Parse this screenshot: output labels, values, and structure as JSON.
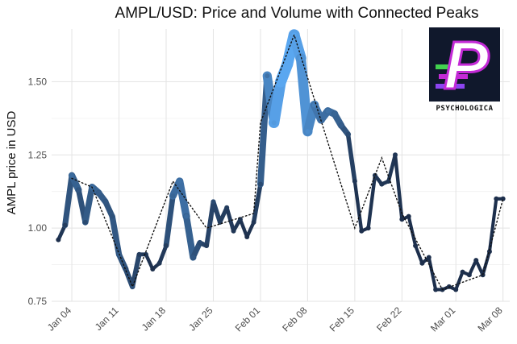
{
  "chart_data": {
    "type": "line",
    "title": "AMPL/USD: Price and Volume with Connected Peaks",
    "ylabel": "AMPL price in USD",
    "xlabel": "",
    "ylim": [
      0.75,
      1.68
    ],
    "yticks": [
      0.75,
      1.0,
      1.25,
      1.5
    ],
    "ytick_labels": [
      "0.75",
      "1.00",
      "1.25",
      "1.50"
    ],
    "x_start": "2020-01-01",
    "xlim": [
      "2020-01-01",
      "2020-03-09"
    ],
    "xticks": [
      "2020-01-04",
      "2020-01-11",
      "2020-01-18",
      "2020-01-25",
      "2020-02-01",
      "2020-02-08",
      "2020-02-15",
      "2020-02-22",
      "2020-03-01",
      "2020-03-08"
    ],
    "xtick_labels": [
      "Jan 04",
      "Jan 11",
      "Jan 18",
      "Jan 25",
      "Feb 01",
      "Feb 08",
      "Feb 15",
      "Feb 22",
      "Mar 01",
      "Mar 08"
    ],
    "grid": true,
    "series": [
      {
        "kind": "price-volume-line",
        "color_low_volume": "#16223a",
        "color_high_volume": "#5aa7f0",
        "x": [
          "2020-01-02",
          "2020-01-03",
          "2020-01-04",
          "2020-01-05",
          "2020-01-06",
          "2020-01-07",
          "2020-01-08",
          "2020-01-09",
          "2020-01-10",
          "2020-01-11",
          "2020-01-12",
          "2020-01-13",
          "2020-01-14",
          "2020-01-15",
          "2020-01-16",
          "2020-01-17",
          "2020-01-18",
          "2020-01-19",
          "2020-01-20",
          "2020-01-21",
          "2020-01-22",
          "2020-01-23",
          "2020-01-24",
          "2020-01-25",
          "2020-01-26",
          "2020-01-27",
          "2020-01-28",
          "2020-01-29",
          "2020-01-30",
          "2020-01-31",
          "2020-02-01",
          "2020-02-02",
          "2020-02-03",
          "2020-02-04",
          "2020-02-05",
          "2020-02-06",
          "2020-02-07",
          "2020-02-08",
          "2020-02-09",
          "2020-02-10",
          "2020-02-11",
          "2020-02-12",
          "2020-02-13",
          "2020-02-14",
          "2020-02-15",
          "2020-02-16",
          "2020-02-17",
          "2020-02-18",
          "2020-02-19",
          "2020-02-20",
          "2020-02-21",
          "2020-02-22",
          "2020-02-23",
          "2020-02-24",
          "2020-02-25",
          "2020-02-26",
          "2020-02-27",
          "2020-02-28",
          "2020-02-29",
          "2020-03-01",
          "2020-03-02",
          "2020-03-03",
          "2020-03-04",
          "2020-03-05",
          "2020-03-06",
          "2020-03-07",
          "2020-03-08"
        ],
        "y": [
          0.96,
          1.01,
          1.18,
          1.13,
          1.02,
          1.14,
          1.12,
          1.09,
          1.04,
          0.91,
          0.86,
          0.8,
          0.91,
          0.91,
          0.86,
          0.88,
          0.94,
          1.11,
          1.16,
          1.04,
          0.9,
          0.95,
          0.94,
          1.09,
          1.02,
          1.07,
          0.99,
          1.03,
          0.97,
          1.02,
          1.15,
          1.52,
          1.36,
          1.5,
          1.56,
          1.66,
          1.58,
          1.33,
          1.42,
          1.37,
          1.4,
          1.39,
          1.35,
          1.32,
          1.16,
          0.99,
          1.0,
          1.18,
          1.15,
          1.16,
          1.25,
          1.03,
          1.04,
          0.94,
          0.88,
          0.9,
          0.79,
          0.79,
          0.8,
          0.79,
          0.85,
          0.84,
          0.89,
          0.84,
          0.92,
          1.1,
          1.1
        ],
        "volume": [
          0.1,
          0.2,
          0.55,
          0.4,
          0.3,
          0.55,
          0.45,
          0.4,
          0.35,
          0.45,
          0.3,
          0.35,
          0.2,
          0.15,
          0.1,
          0.15,
          0.2,
          0.5,
          0.6,
          0.55,
          0.4,
          0.3,
          0.2,
          0.3,
          0.2,
          0.2,
          0.15,
          0.15,
          0.1,
          0.15,
          0.3,
          0.6,
          0.9,
          1.0,
          1.0,
          1.0,
          0.9,
          0.8,
          0.7,
          0.55,
          0.6,
          0.5,
          0.45,
          0.3,
          0.15,
          0.1,
          0.1,
          0.15,
          0.15,
          0.15,
          0.15,
          0.1,
          0.1,
          0.1,
          0.1,
          0.1,
          0.1,
          0.1,
          0.1,
          0.1,
          0.1,
          0.1,
          0.1,
          0.1,
          0.1,
          0.1,
          0.1
        ]
      },
      {
        "kind": "connected-peaks",
        "style": "dotted",
        "color": "#111111",
        "x": [
          "2020-01-04",
          "2020-01-07",
          "2020-01-13",
          "2020-01-19",
          "2020-01-24",
          "2020-01-31",
          "2020-02-01",
          "2020-02-06",
          "2020-02-15",
          "2020-02-19",
          "2020-02-22",
          "2020-02-28",
          "2020-03-05",
          "2020-03-08"
        ],
        "y": [
          1.17,
          1.14,
          0.8,
          1.16,
          1.0,
          1.05,
          1.36,
          1.66,
          1.0,
          1.24,
          1.05,
          0.79,
          0.84,
          1.1
        ]
      }
    ]
  },
  "logo": {
    "text": "PSYCHOLOGICA",
    "letter": "P",
    "colors": {
      "background": "#10182c",
      "letter": "#ffffff",
      "magenta": "#c32ad6",
      "green": "#42d14f",
      "violet": "#8d44f0"
    }
  }
}
